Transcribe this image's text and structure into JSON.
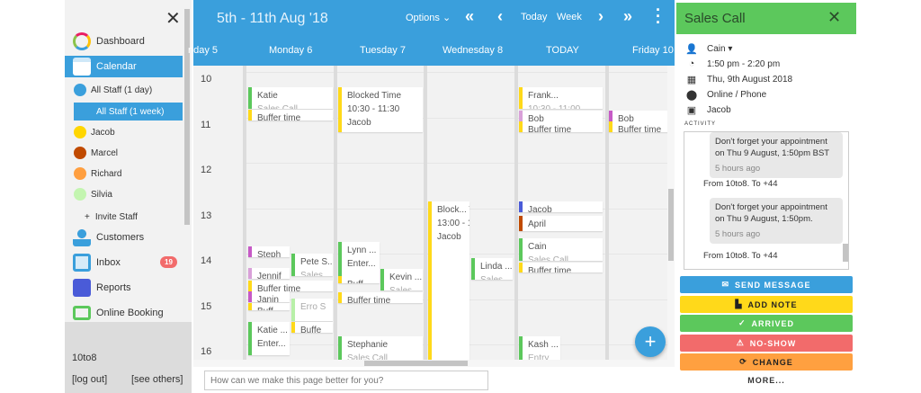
{
  "sidebar": {
    "items": [
      {
        "label": "Dashboard"
      },
      {
        "label": "Calendar"
      },
      {
        "label": "Customers"
      },
      {
        "label": "Inbox",
        "badge": "19"
      },
      {
        "label": "Reports"
      },
      {
        "label": "Online Booking"
      }
    ],
    "sub_items": [
      {
        "label": "All Staff (1 day)",
        "color": "#3a9fdc"
      },
      {
        "label": "All Staff (1 week)"
      },
      {
        "label": "Jacob",
        "color": "#ffd600"
      },
      {
        "label": "Marcel",
        "color": "#c04a00"
      },
      {
        "label": "Richard",
        "color": "#ff9f40"
      },
      {
        "label": "Silvia",
        "color": "#c3f5b0"
      },
      {
        "label": "Invite Staff"
      }
    ],
    "account": "10to8",
    "logout": "[log out]",
    "see_others": "[see others]"
  },
  "calendar": {
    "range": "5th - 11th Aug '18",
    "options": "Options",
    "today": "Today",
    "week": "Week",
    "days": [
      "nday 5",
      "Monday 6",
      "Tuesday 7",
      "Wednesday 8",
      "TODAY",
      "Friday 10"
    ],
    "hours": [
      "10",
      "11",
      "12",
      "13",
      "14",
      "15",
      "16"
    ],
    "events": [
      {
        "t": "Katie",
        "s": "Sales Call"
      },
      {
        "t": "Buffer time"
      },
      {
        "t": "Steph"
      },
      {
        "t": "Pete S...",
        "s": "Sales"
      },
      {
        "t": "Jennif"
      },
      {
        "t": "Buffer time"
      },
      {
        "t": "Janin"
      },
      {
        "t": "Buff"
      },
      {
        "t": "",
        "s": "Erro S"
      },
      {
        "t": "Buffe"
      },
      {
        "t": "Katie ...",
        "s2": "Enter..."
      },
      {
        "t": "Blocked Time",
        "s2": "10:30 - 11:30",
        "s3": "Jacob"
      },
      {
        "t": "Lynn ...",
        "s2": "Enter..."
      },
      {
        "t": "Buff"
      },
      {
        "t": "Kevin ...",
        "s": "Sales"
      },
      {
        "t": "Buffer time"
      },
      {
        "t": "Stephanie",
        "s": "Sales Call"
      },
      {
        "t": "Block... Time",
        "s2": "13:00 - 19:30",
        "s3": "Jacob"
      },
      {
        "t": "Linda ...",
        "s": "Sales"
      },
      {
        "t": "Frank...",
        "s": "10:30 - 11:00"
      },
      {
        "t": "Bob"
      },
      {
        "t": "Buffer time"
      },
      {
        "t": "Jacob"
      },
      {
        "t": "April"
      },
      {
        "t": "Cain",
        "s": "Sales Call"
      },
      {
        "t": "Buffer time"
      },
      {
        "t": "Kash ...",
        "s": "Entry"
      },
      {
        "t": "Bob"
      },
      {
        "t": "Buffer time"
      }
    ],
    "feedback_placeholder": "How can we make this page better for you?"
  },
  "panel": {
    "title": "Sales Call",
    "customer": "Cain",
    "time": "1:50 pm - 2:20 pm",
    "date": "Thu, 9th August 2018",
    "location": "Online / Phone",
    "staff": "Jacob",
    "activity_label": "ACTIVITY",
    "messages": [
      {
        "text": "Don't forget your appointment on Thu 9 August, 1:50pm BST",
        "ago": "5 hours ago",
        "from": "From 10to8. To +44"
      },
      {
        "text": "Don't forget your appointment on Thu 9 August, 1:50pm.",
        "ago": "5 hours ago",
        "from": "From 10to8. To +44"
      }
    ],
    "buttons": {
      "send": "SEND MESSAGE",
      "note": "ADD NOTE",
      "arrived": "ARRIVED",
      "noshow": "NO-SHOW",
      "change": "CHANGE",
      "more": "MORE..."
    }
  },
  "colors": {
    "blue": "#3a9fdc",
    "green": "#5cc85c",
    "yellow": "#ffd91a",
    "red": "#f26b6b",
    "orange": "#ffa040"
  }
}
